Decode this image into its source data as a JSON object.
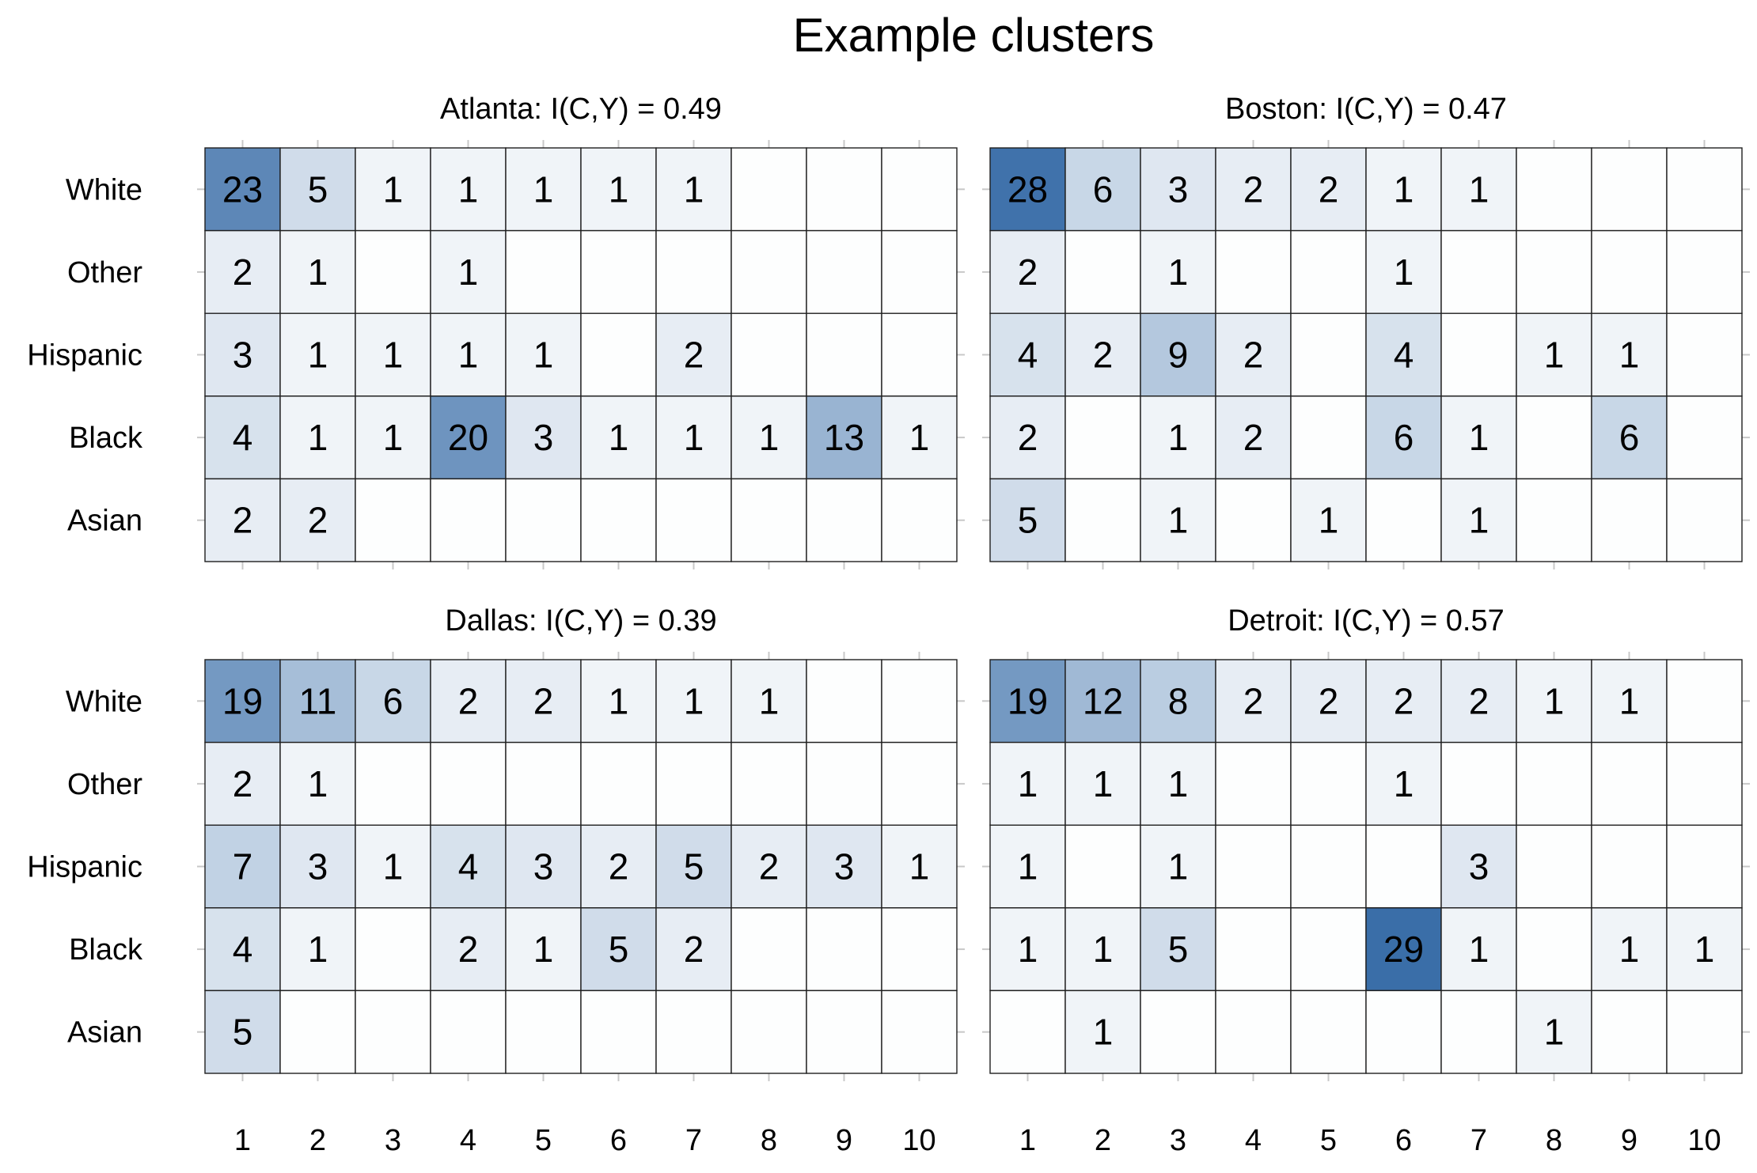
{
  "chart_data": {
    "type": "heatmap",
    "title": "Example clusters",
    "rows": [
      "White",
      "Other",
      "Hispanic",
      "Black",
      "Asian"
    ],
    "columns": [
      1,
      2,
      3,
      4,
      5,
      6,
      7,
      8,
      9,
      10
    ],
    "color_low": "#ffffff",
    "color_high": "#3a6ea8",
    "color_max_value": 29,
    "panels": [
      {
        "title": "Atlanta: I(C,Y) = 0.49",
        "values": [
          [
            23,
            5,
            1,
            1,
            1,
            1,
            1,
            0,
            0,
            0
          ],
          [
            2,
            1,
            0,
            1,
            0,
            0,
            0,
            0,
            0,
            0
          ],
          [
            3,
            1,
            1,
            1,
            1,
            0,
            2,
            0,
            0,
            0
          ],
          [
            4,
            1,
            1,
            20,
            3,
            1,
            1,
            1,
            13,
            1
          ],
          [
            2,
            2,
            0,
            0,
            0,
            0,
            0,
            0,
            0,
            0
          ]
        ]
      },
      {
        "title": "Boston: I(C,Y) = 0.47",
        "values": [
          [
            28,
            6,
            3,
            2,
            2,
            1,
            1,
            0,
            0,
            0
          ],
          [
            2,
            0,
            1,
            0,
            0,
            1,
            0,
            0,
            0,
            0
          ],
          [
            4,
            2,
            9,
            2,
            0,
            4,
            0,
            1,
            1,
            0
          ],
          [
            2,
            0,
            1,
            2,
            0,
            6,
            1,
            0,
            6,
            0
          ],
          [
            5,
            0,
            1,
            0,
            1,
            0,
            1,
            0,
            0,
            0
          ]
        ]
      },
      {
        "title": "Dallas: I(C,Y) = 0.39",
        "values": [
          [
            19,
            11,
            6,
            2,
            2,
            1,
            1,
            1,
            0,
            0
          ],
          [
            2,
            1,
            0,
            0,
            0,
            0,
            0,
            0,
            0,
            0
          ],
          [
            7,
            3,
            1,
            4,
            3,
            2,
            5,
            2,
            3,
            1
          ],
          [
            4,
            1,
            0,
            2,
            1,
            5,
            2,
            0,
            0,
            0
          ],
          [
            5,
            0,
            0,
            0,
            0,
            0,
            0,
            0,
            0,
            0
          ]
        ]
      },
      {
        "title": "Detroit: I(C,Y) = 0.57",
        "values": [
          [
            19,
            12,
            8,
            2,
            2,
            2,
            2,
            1,
            1,
            0
          ],
          [
            1,
            1,
            1,
            0,
            0,
            1,
            0,
            0,
            0,
            0
          ],
          [
            1,
            0,
            1,
            0,
            0,
            0,
            3,
            0,
            0,
            0
          ],
          [
            1,
            1,
            5,
            0,
            0,
            29,
            1,
            0,
            1,
            1
          ],
          [
            0,
            1,
            0,
            0,
            0,
            0,
            0,
            1,
            0,
            0
          ]
        ]
      }
    ]
  }
}
